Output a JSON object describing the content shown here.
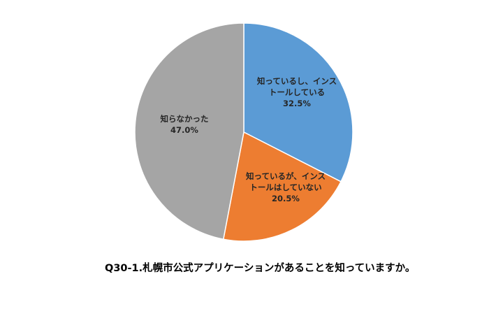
{
  "chart_data": {
    "type": "pie",
    "title": "Q30-1.札幌市公式アプリケーションがあることを知っていますか。",
    "start_angle_deg": 0,
    "direction": "clockwise",
    "slices": [
      {
        "label_lines": [
          "知っているし、インス",
          "トールしている"
        ],
        "value": 32.5,
        "value_label": "32.5%",
        "color": "#5b9bd5"
      },
      {
        "label_lines": [
          "知っているが、インス",
          "トールはしていない"
        ],
        "value": 20.5,
        "value_label": "20.5%",
        "color": "#ed7d31"
      },
      {
        "label_lines": [
          "知らなかった"
        ],
        "value": 47.0,
        "value_label": "47.0%",
        "color": "#a5a5a5"
      }
    ],
    "legend": "none"
  }
}
